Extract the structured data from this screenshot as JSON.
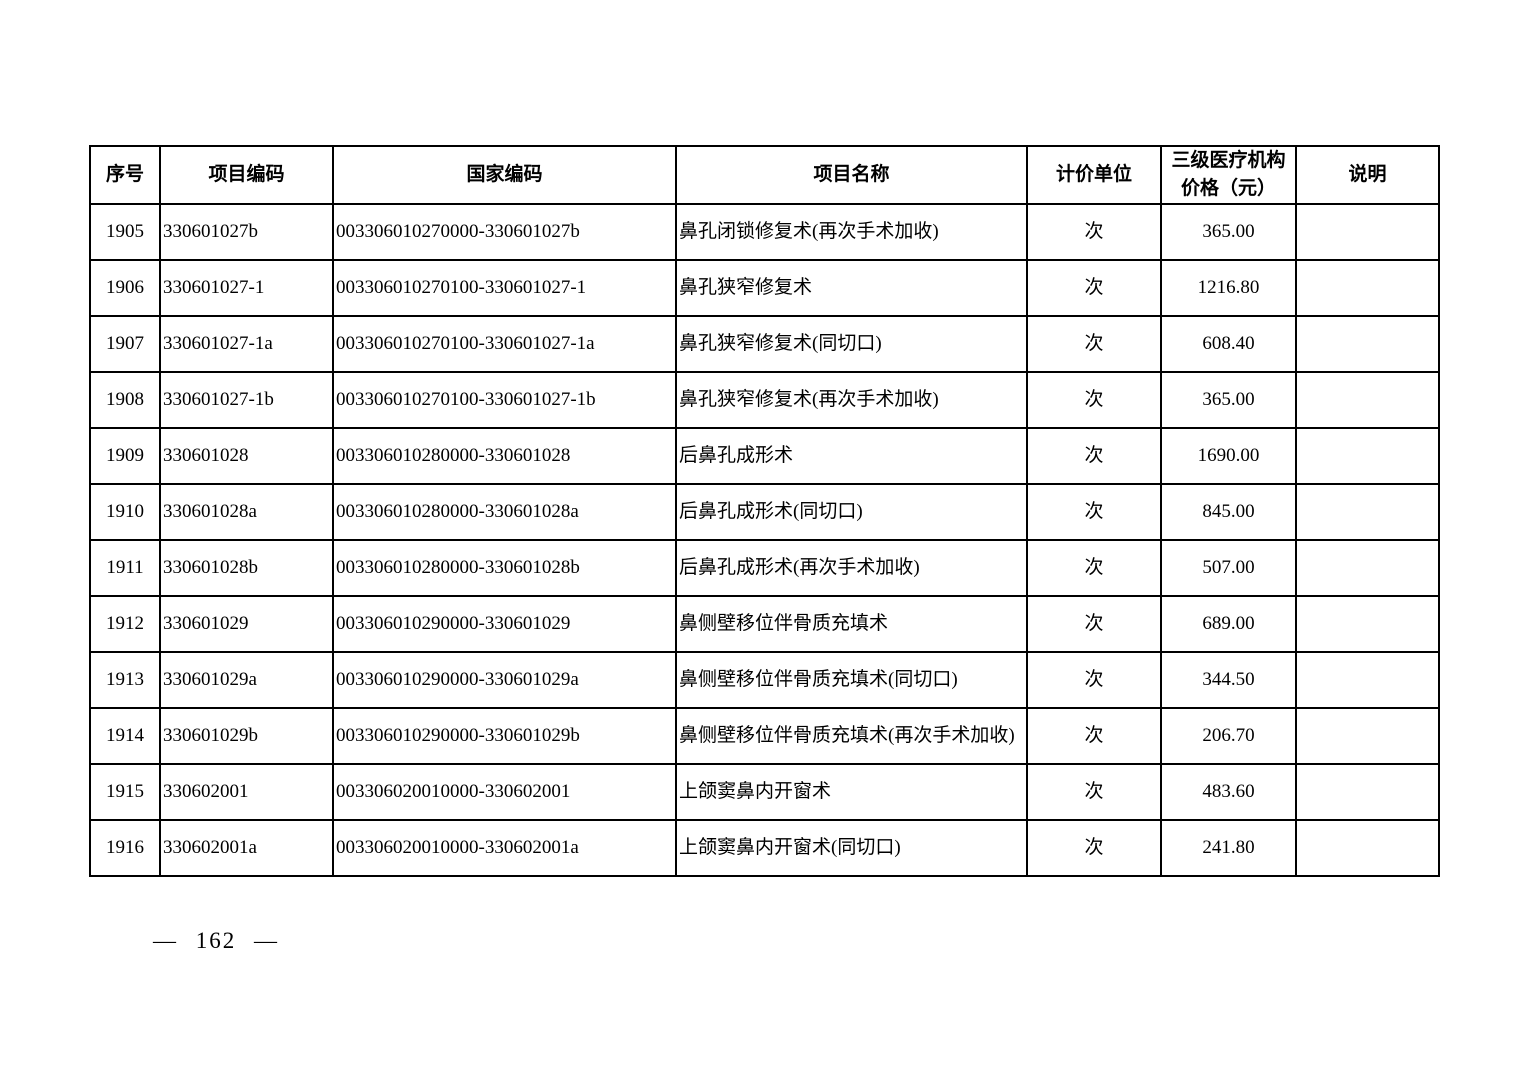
{
  "colors": {
    "text": "#000000",
    "border": "#000000",
    "background": "#ffffff"
  },
  "page": {
    "number_label": "— 162 —"
  },
  "table": {
    "headers": [
      "序号",
      "项目编码",
      "国家编码",
      "项目名称",
      "计价单位",
      "三级医疗机构价格（元）",
      "说明"
    ],
    "column_keys": [
      "no",
      "project_code",
      "national_code",
      "name",
      "unit",
      "price",
      "note"
    ],
    "rows": [
      {
        "no": "1905",
        "project_code": "330601027b",
        "national_code": "003306010270000-330601027b",
        "name": "鼻孔闭锁修复术(再次手术加收)",
        "unit": "次",
        "price": "365.00",
        "note": ""
      },
      {
        "no": "1906",
        "project_code": "330601027-1",
        "national_code": "003306010270100-330601027-1",
        "name": "鼻孔狭窄修复术",
        "unit": "次",
        "price": "1216.80",
        "note": ""
      },
      {
        "no": "1907",
        "project_code": "330601027-1a",
        "national_code": "003306010270100-330601027-1a",
        "name": "鼻孔狭窄修复术(同切口)",
        "unit": "次",
        "price": "608.40",
        "note": ""
      },
      {
        "no": "1908",
        "project_code": "330601027-1b",
        "national_code": "003306010270100-330601027-1b",
        "name": "鼻孔狭窄修复术(再次手术加收)",
        "unit": "次",
        "price": "365.00",
        "note": ""
      },
      {
        "no": "1909",
        "project_code": "330601028",
        "national_code": "003306010280000-330601028",
        "name": "后鼻孔成形术",
        "unit": "次",
        "price": "1690.00",
        "note": ""
      },
      {
        "no": "1910",
        "project_code": "330601028a",
        "national_code": "003306010280000-330601028a",
        "name": "后鼻孔成形术(同切口)",
        "unit": "次",
        "price": "845.00",
        "note": ""
      },
      {
        "no": "1911",
        "project_code": "330601028b",
        "national_code": "003306010280000-330601028b",
        "name": "后鼻孔成形术(再次手术加收)",
        "unit": "次",
        "price": "507.00",
        "note": ""
      },
      {
        "no": "1912",
        "project_code": "330601029",
        "national_code": "003306010290000-330601029",
        "name": "鼻侧壁移位伴骨质充填术",
        "unit": "次",
        "price": "689.00",
        "note": ""
      },
      {
        "no": "1913",
        "project_code": "330601029a",
        "national_code": "003306010290000-330601029a",
        "name": "鼻侧壁移位伴骨质充填术(同切口)",
        "unit": "次",
        "price": "344.50",
        "note": ""
      },
      {
        "no": "1914",
        "project_code": "330601029b",
        "national_code": "003306010290000-330601029b",
        "name": "鼻侧壁移位伴骨质充填术(再次手术加收)",
        "unit": "次",
        "price": "206.70",
        "note": ""
      },
      {
        "no": "1915",
        "project_code": "330602001",
        "national_code": "003306020010000-330602001",
        "name": "上颌窦鼻内开窗术",
        "unit": "次",
        "price": "483.60",
        "note": ""
      },
      {
        "no": "1916",
        "project_code": "330602001a",
        "national_code": "003306020010000-330602001a",
        "name": "上颌窦鼻内开窗术(同切口)",
        "unit": "次",
        "price": "241.80",
        "note": ""
      }
    ]
  }
}
